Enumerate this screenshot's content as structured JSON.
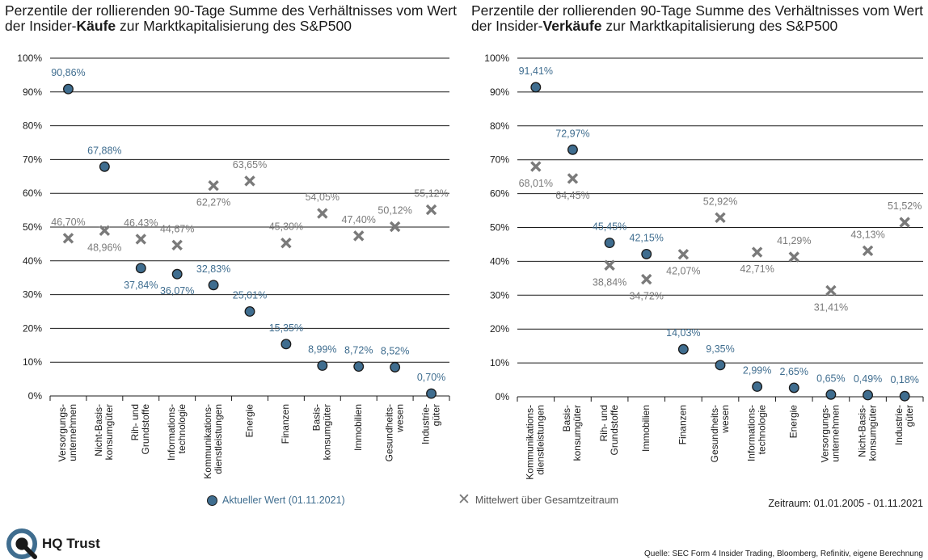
{
  "chart_data": [
    {
      "type": "scatter",
      "title_parts": [
        "Perzentile der rollierenden 90-Tage Summe des Verhältnisses vom Wert der Insider-",
        "Käufe",
        " zur Marktkapitalisierung des S&P500"
      ],
      "categories": [
        "Versorgungs-\nunternehmen",
        "Nicht-Basis-\nkonsumgüter",
        "Rih- und\nGrundstoffe",
        "Informations-\ntechnologie",
        "Kommunikations-\ndienstleistungen",
        "Energie",
        "Finanzen",
        "Basis-\nkonsumgüter",
        "Immobilien",
        "Gesundheits-\nwesen",
        "Industrie-\ngüter"
      ],
      "series": [
        {
          "name": "Aktueller Wert (01.11.2021)",
          "values": [
            90.86,
            67.88,
            37.84,
            36.07,
            32.83,
            25.01,
            15.35,
            8.99,
            8.72,
            8.52,
            0.7
          ],
          "labels": [
            "90,86%",
            "67,88%",
            "37,84%",
            "36,07%",
            "32,83%",
            "25,01%",
            "15,35%",
            "8,99%",
            "8,72%",
            "8,52%",
            "0,70%"
          ],
          "label_pos": [
            "above",
            "above",
            "below",
            "below",
            "above",
            "above",
            "above",
            "above",
            "above",
            "above",
            "above"
          ]
        },
        {
          "name": "Mittelwert über Gesamtzeitraum",
          "values": [
            46.7,
            48.96,
            46.43,
            44.67,
            62.27,
            63.65,
            45.3,
            54.05,
            47.4,
            50.12,
            55.12
          ],
          "labels": [
            "46,70%",
            "48,96%",
            "46,43%",
            "44,67%",
            "62,27%",
            "63,65%",
            "45,30%",
            "54,05%",
            "47,40%",
            "50,12%",
            "55,12%"
          ],
          "label_pos": [
            "above",
            "below",
            "above",
            "above",
            "below",
            "above",
            "above",
            "above",
            "above",
            "above",
            "above"
          ]
        }
      ],
      "ylim": [
        0,
        100
      ],
      "yticks": [
        "0%",
        "10%",
        "20%",
        "30%",
        "40%",
        "50%",
        "60%",
        "70%",
        "80%",
        "90%",
        "100%"
      ],
      "grid": true
    },
    {
      "type": "scatter",
      "title_parts": [
        "Perzentile der rollierenden 90-Tage Summe des Verhältnisses vom Wert der Insider-",
        "Verkäufe",
        " zur Marktkapitalisierung des S&P500"
      ],
      "categories": [
        "Kommunikations-\ndienstleistungen",
        "Basis-\nkonsumgüter",
        "Rih- und\nGrundstoffe",
        "Immobilien",
        "Finanzen",
        "Gesundheits-\nwesen",
        "Informations-\ntechnologie",
        "Energie",
        "Versorgungs-\nunternehmen",
        "Nicht-Basis-\nkonsumgüter",
        "Industrie-\ngüter"
      ],
      "series": [
        {
          "name": "Aktueller Wert (01.11.2021)",
          "values": [
            91.41,
            72.97,
            45.45,
            42.15,
            14.03,
            9.35,
            2.99,
            2.65,
            0.65,
            0.49,
            0.18
          ],
          "labels": [
            "91,41%",
            "72,97%",
            "45,45%",
            "42,15%",
            "14,03%",
            "9,35%",
            "2,99%",
            "2,65%",
            "0,65%",
            "0,49%",
            "0,18%"
          ],
          "label_pos": [
            "above",
            "above",
            "above",
            "above",
            "above",
            "above",
            "above",
            "above",
            "above",
            "above",
            "above"
          ]
        },
        {
          "name": "Mittelwert über Gesamtzeitraum",
          "values": [
            68.01,
            64.45,
            38.84,
            34.72,
            42.07,
            52.92,
            42.71,
            41.29,
            31.41,
            43.13,
            51.52
          ],
          "labels": [
            "68,01%",
            "64,45%",
            "38,84%",
            "34,72%",
            "42,07%",
            "52,92%",
            "42,71%",
            "41,29%",
            "31,41%",
            "43,13%",
            "51,52%"
          ],
          "label_pos": [
            "below",
            "below",
            "below",
            "below",
            "below",
            "above",
            "below",
            "above",
            "below",
            "above",
            "above"
          ]
        }
      ],
      "ylim": [
        0,
        100
      ],
      "yticks": [
        "0%",
        "10%",
        "20%",
        "30%",
        "40%",
        "50%",
        "60%",
        "70%",
        "80%",
        "90%",
        "100%"
      ],
      "grid": true
    }
  ],
  "colors": {
    "current": "#3f6d8f",
    "current_label": "#3f6d8f",
    "mean": "#7a7a7a",
    "mean_label": "#7a7a7a",
    "grid": "#1a1a1a"
  },
  "legend": {
    "current": "Aktueller Wert (01.11.2021)",
    "mean": "Mittelwert über Gesamtzeitraum"
  },
  "period": "Zeitraum: 01.01.2005 - 01.11.2021",
  "source": "Quelle: SEC Form 4 Insider Trading, Bloomberg, Refinitiv, eigene Berechnung",
  "logo": {
    "text": "HQ Trust",
    "icon": "hq-trust-logo-icon"
  }
}
